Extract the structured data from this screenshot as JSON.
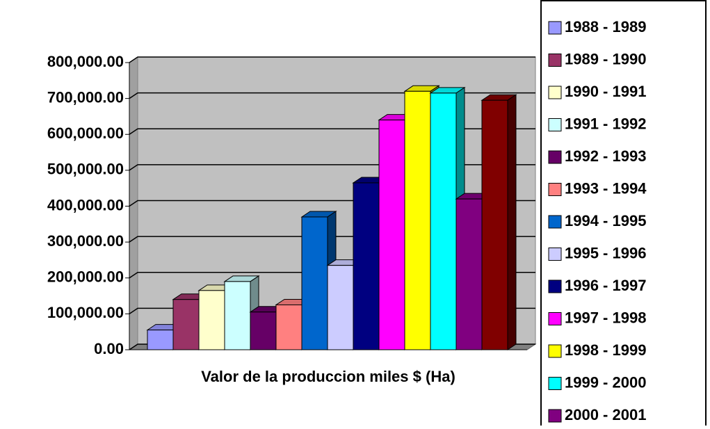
{
  "chart_data": {
    "type": "bar3d",
    "categories": [
      "Valor de la produccion miles $ (Ha)"
    ],
    "series": [
      {
        "name": "1988 - 1989",
        "color": "#9999ff",
        "values": [
          55000
        ]
      },
      {
        "name": "1989 - 1990",
        "color": "#993366",
        "values": [
          140000
        ]
      },
      {
        "name": "1990 - 1991",
        "color": "#ffffcc",
        "values": [
          165000
        ]
      },
      {
        "name": "1991 - 1992",
        "color": "#ccffff",
        "values": [
          190000
        ]
      },
      {
        "name": "1992 - 1993",
        "color": "#660066",
        "values": [
          105000
        ]
      },
      {
        "name": "1993 - 1994",
        "color": "#ff8080",
        "values": [
          125000
        ]
      },
      {
        "name": "1994 - 1995",
        "color": "#0066cc",
        "values": [
          370000
        ]
      },
      {
        "name": "1995 - 1996",
        "color": "#ccccff",
        "values": [
          235000
        ]
      },
      {
        "name": "1996 - 1997",
        "color": "#000080",
        "values": [
          465000
        ]
      },
      {
        "name": "1997 - 1998",
        "color": "#ff00ff",
        "values": [
          640000
        ]
      },
      {
        "name": "1998 - 1999",
        "color": "#ffff00",
        "values": [
          720000
        ]
      },
      {
        "name": "1999 - 2000",
        "color": "#00ffff",
        "values": [
          715000
        ]
      },
      {
        "name": "2000 - 2001",
        "color": "#800080",
        "values": [
          420000
        ]
      },
      {
        "color": "#800000",
        "values": [
          695000
        ]
      }
    ],
    "ylim": [
      0,
      800000
    ],
    "yticks": [
      {
        "value": 0,
        "label": "0.00"
      },
      {
        "value": 100000,
        "label": "100,000.00"
      },
      {
        "value": 200000,
        "label": "200,000.00"
      },
      {
        "value": 300000,
        "label": "300,000.00"
      },
      {
        "value": 400000,
        "label": "400,000.00"
      },
      {
        "value": 500000,
        "label": "500,000.00"
      },
      {
        "value": 600000,
        "label": "600,000.00"
      },
      {
        "value": 700000,
        "label": "700,000.00"
      },
      {
        "value": 800000,
        "label": "800,000.00"
      }
    ],
    "grid": true,
    "legend": "right"
  }
}
